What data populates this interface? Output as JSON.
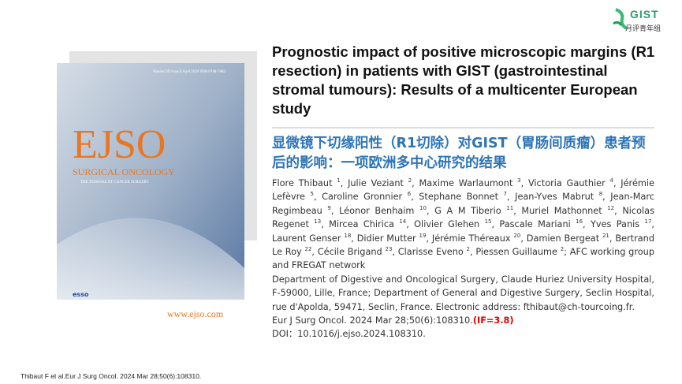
{
  "logo": {
    "brand": "GIST",
    "group": "月评青年组"
  },
  "cover": {
    "masthead": "EJSO",
    "subtitle": "SURGICAL ONCOLOGY",
    "tagline": "THE JOURNAL OF CANCER SURGERY",
    "issue": "Volume 50 Issue 6 April 2024 ISSN 0748-7983",
    "society": "esso",
    "website": "www.ejso.com"
  },
  "title_en": "Prognostic impact of positive microscopic margins (R1 resection) in patients with GIST (gastrointestinal stromal tumours): Results of a multicenter European study",
  "title_zh": "显微镜下切缘阳性（R1切除）对GIST（胃肠间质瘤）患者预后的影响：一项欧洲多中心研究的结果",
  "authors": [
    {
      "text": "Flore Thibaut ",
      "sup": "1"
    },
    {
      "text": ", Julie Veziant ",
      "sup": "2"
    },
    {
      "text": ", Maxime Warlaumont ",
      "sup": "3"
    },
    {
      "text": ", Victoria Gauthier ",
      "sup": "4"
    },
    {
      "text": ", Jérémie Lefèvre ",
      "sup": "5"
    },
    {
      "text": ", Caroline Gronnier ",
      "sup": "6"
    },
    {
      "text": ", Stephane Bonnet ",
      "sup": "7"
    },
    {
      "text": ", Jean-Yves Mabrut ",
      "sup": "8"
    },
    {
      "text": ", Jean-Marc Regimbeau ",
      "sup": "9"
    },
    {
      "text": ", Léonor Benhaim ",
      "sup": "10"
    },
    {
      "text": ", G A M Tiberio ",
      "sup": "11"
    },
    {
      "text": ", Muriel Mathonnet ",
      "sup": "12"
    },
    {
      "text": ", Nicolas Regenet ",
      "sup": "13"
    },
    {
      "text": ", Mircea Chirica ",
      "sup": "14"
    },
    {
      "text": ", Olivier Glehen ",
      "sup": "15"
    },
    {
      "text": ", Pascale Mariani ",
      "sup": "16"
    },
    {
      "text": ", Yves Panis ",
      "sup": "17"
    },
    {
      "text": ", Laurent Genser ",
      "sup": "18"
    },
    {
      "text": ", Didier Mutter ",
      "sup": "19"
    },
    {
      "text": ", Jérémie Théreaux ",
      "sup": "20"
    },
    {
      "text": ", Damien Bergeat ",
      "sup": "21"
    },
    {
      "text": ", Bertrand Le Roy ",
      "sup": "22"
    },
    {
      "text": ", Cécile Brigand ",
      "sup": "23"
    },
    {
      "text": ", Clarisse Eveno ",
      "sup": "2"
    },
    {
      "text": ", Piessen Guillaume ",
      "sup": "2"
    },
    {
      "text": "; AFC working group and FREGAT network"
    }
  ],
  "affiliation": "Department of Digestive and Oncological Surgery, Claude Huriez University Hospital, F-59000, Lille, France; Department of General and Digestive Surgery, Seclin Hospital, rue d'Apolda, 59471, Seclin, France. Electronic address: fthibaut@ch-tourcoing.fr.",
  "citation": "Eur J Surg Oncol. 2024 Mar 28;50(6):108310.",
  "impact_factor": "(IF=3.8)",
  "doi": "DOI：10.1016/j.ejso.2024.108310.",
  "footnote": "Thibaut F et al.Eur J Surg Oncol. 2024 Mar 28;50(6):108310."
}
